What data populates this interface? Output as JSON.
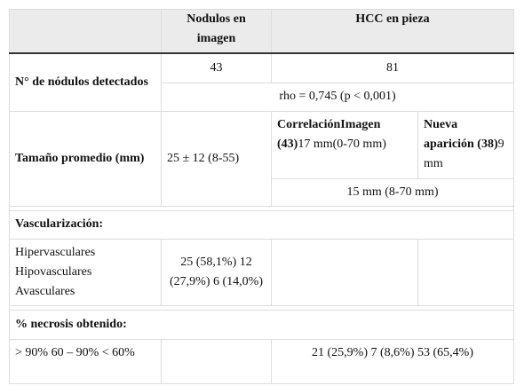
{
  "table": {
    "header": [
      "Nodulos en imagen",
      "HCC en pieza"
    ],
    "nodulos": {
      "label": "N° de nódulos detectados",
      "imagen": "43",
      "pieza": "81",
      "rho": "rho = 0,745 (p < 0,001)"
    },
    "tamano": {
      "label": "Tamaño promedio (mm)",
      "imagen": "25 ± 12 (8-55)",
      "correlacion": {
        "bold": "CorrelaciónImagen (43)",
        "text": "17 mm(0-70 mm)"
      },
      "nueva": {
        "bold": "Nueva aparición (38)",
        "text": "9 mm"
      },
      "pieza": "15 mm (8-70 mm)"
    },
    "vascularizacion": {
      "title": "Vascularización:",
      "labels": [
        "Hipervasculares",
        "Hipovasculares",
        "Avasculares"
      ],
      "imagen": [
        "25 (58,1%)",
        "12 (27,9%)",
        "6 (14,0%)"
      ]
    },
    "necrosis": {
      "title": "% necrosis obtenido:",
      "labels": [
        "> 90%",
        "60 – 90%",
        "< 60%"
      ],
      "pieza": [
        "21 (25,9%)",
        "7 (8,6%)",
        "53 (65,4%)"
      ]
    }
  }
}
